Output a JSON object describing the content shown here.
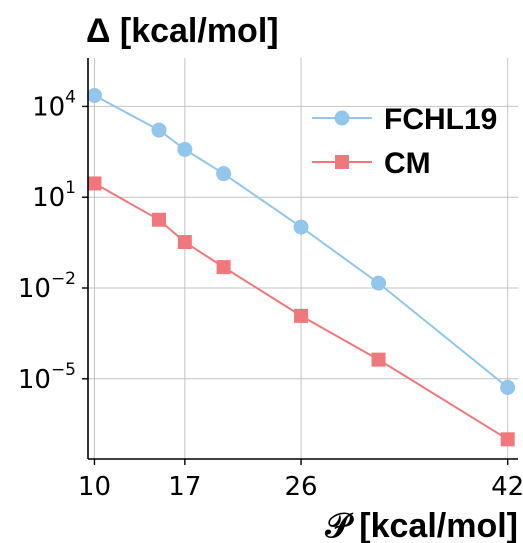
{
  "chart_data": {
    "type": "line",
    "title": "Δ [kcal/mol]",
    "xlabel": "𝒫 [kcal/mol]",
    "ylabel": "",
    "yscale": "log",
    "xlim": [
      9.5,
      42.8
    ],
    "ylim_log10": [
      -7.65,
      5.6
    ],
    "grid": true,
    "legend_position": "top-right",
    "x_ticks": [
      {
        "value": 10,
        "label": "10"
      },
      {
        "value": 17,
        "label": "17"
      },
      {
        "value": 26,
        "label": "26"
      },
      {
        "value": 42,
        "label": "42"
      }
    ],
    "x_grid_values": [
      10,
      17,
      26,
      42
    ],
    "y_ticks": [
      {
        "log10": 4,
        "base": "10",
        "exp": "4"
      },
      {
        "log10": 1,
        "base": "10",
        "exp": "1"
      },
      {
        "log10": -2,
        "base": "10",
        "exp": "−2"
      },
      {
        "log10": -5,
        "base": "10",
        "exp": "−5"
      }
    ],
    "series": [
      {
        "name": "FCHL19",
        "color": "#92c6ea",
        "marker": "circle",
        "x": [
          10,
          15,
          17,
          20,
          26,
          32,
          42
        ],
        "y": [
          23000,
          1650,
          380,
          60,
          1.03,
          0.0145,
          5.2e-06
        ]
      },
      {
        "name": "CM",
        "color": "#ef787c",
        "marker": "square",
        "x": [
          10,
          15,
          17,
          20,
          26,
          32,
          42
        ],
        "y": [
          28.5,
          1.8,
          0.33,
          0.049,
          0.0012,
          4.3e-05,
          1e-07
        ]
      }
    ]
  }
}
